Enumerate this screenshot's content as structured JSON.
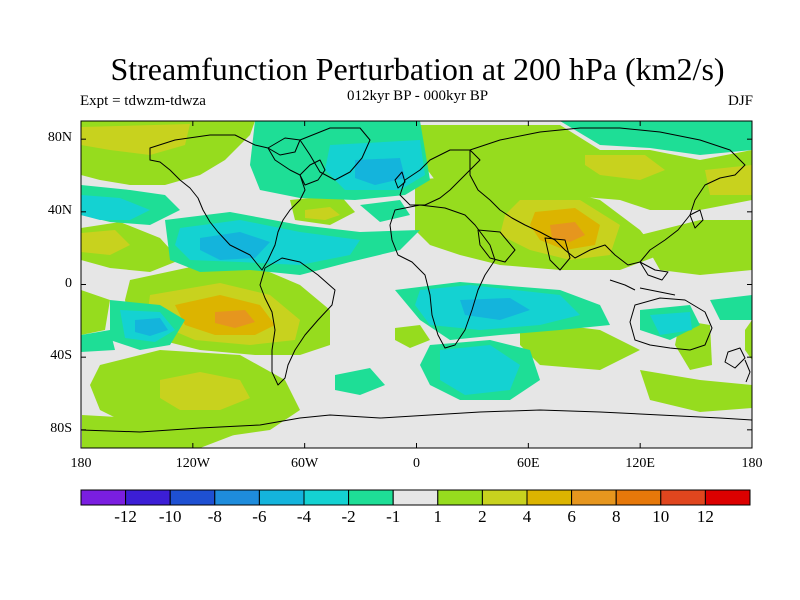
{
  "title": "Streamfunction Perturbation at 200 hPa (km2/s)",
  "subtitle": "012kyr BP - 000kyr BP",
  "left_label": "Expt = tdwzm-tdwza",
  "right_label": "DJF",
  "y_ticks": [
    {
      "label": "80N",
      "lat": 80
    },
    {
      "label": "40N",
      "lat": 40
    },
    {
      "label": "0",
      "lat": 0
    },
    {
      "label": "40S",
      "lat": -40
    },
    {
      "label": "80S",
      "lat": -80
    }
  ],
  "x_ticks": [
    {
      "label": "180",
      "lon": -180
    },
    {
      "label": "120W",
      "lon": -120
    },
    {
      "label": "60W",
      "lon": -60
    },
    {
      "label": "0",
      "lon": 0
    },
    {
      "label": "60E",
      "lon": 60
    },
    {
      "label": "120E",
      "lon": 120
    },
    {
      "label": "180",
      "lon": 180
    }
  ],
  "colorbar": {
    "colors": [
      "#7a1ee0",
      "#3c1ed6",
      "#1e50d2",
      "#1e8cdc",
      "#14b4dc",
      "#14d2d2",
      "#1ede96",
      "#e6e6e6",
      "#96dc1e",
      "#c8d21e",
      "#dcb400",
      "#e6961e",
      "#e6780a",
      "#e0461e",
      "#dc0000"
    ],
    "labels": [
      {
        "text": "-12",
        "index": 1
      },
      {
        "text": "-10",
        "index": 2
      },
      {
        "text": "-8",
        "index": 3
      },
      {
        "text": "-6",
        "index": 4
      },
      {
        "text": "-4",
        "index": 5
      },
      {
        "text": "-2",
        "index": 6
      },
      {
        "text": "-1",
        "index": 7
      },
      {
        "text": "1",
        "index": 8
      },
      {
        "text": "2",
        "index": 9
      },
      {
        "text": "4",
        "index": 10
      },
      {
        "text": "6",
        "index": 11
      },
      {
        "text": "8",
        "index": 12
      },
      {
        "text": "10",
        "index": 13
      },
      {
        "text": "12",
        "index": 14
      }
    ]
  }
}
